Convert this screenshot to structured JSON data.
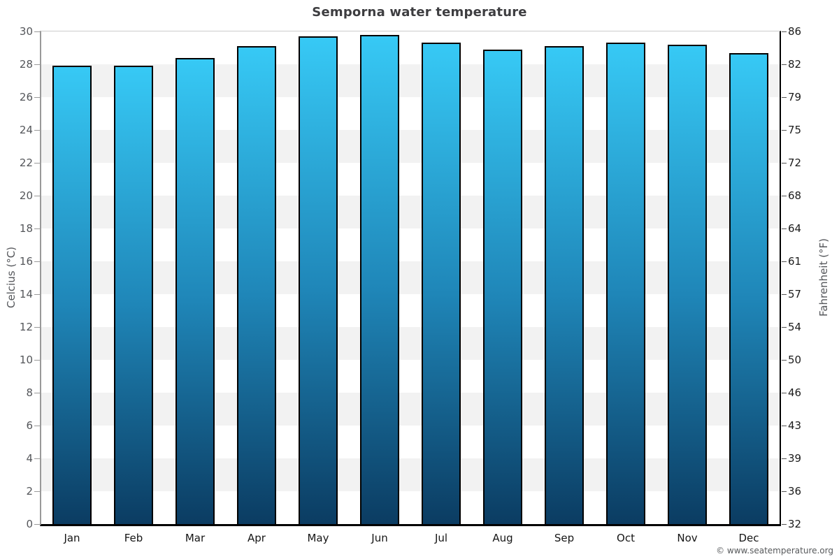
{
  "title": "Semporna water temperature",
  "footer": "© www.seatemperature.org",
  "axes": {
    "left_title": "Celcius (°C)",
    "right_title": "Fahrenheit (°F)"
  },
  "chart_data": {
    "type": "bar",
    "title": "Semporna water temperature",
    "categories": [
      "Jan",
      "Feb",
      "Mar",
      "Apr",
      "May",
      "Jun",
      "Jul",
      "Aug",
      "Sep",
      "Oct",
      "Nov",
      "Dec"
    ],
    "values": [
      27.9,
      27.9,
      28.4,
      29.1,
      29.7,
      29.8,
      29.3,
      28.9,
      29.1,
      29.3,
      29.2,
      28.7
    ],
    "xlabel": "",
    "ylabel": "Celcius (°C)",
    "ylabel_right": "Fahrenheit (°F)",
    "ylim": [
      0,
      30
    ],
    "yticks_celsius": [
      0,
      2,
      4,
      6,
      8,
      10,
      12,
      14,
      16,
      18,
      20,
      22,
      24,
      26,
      28,
      30
    ],
    "yticks_fahrenheit": [
      32,
      36,
      39,
      43,
      46,
      50,
      54,
      57,
      61,
      64,
      68,
      72,
      75,
      79,
      82,
      86
    ],
    "grid": "horizontal alternating bands every 2°C",
    "legend": false
  },
  "colors": {
    "bar_top": "#37c9f5",
    "bar_mid": "#1f86b8",
    "bar_bottom": "#0b3c62",
    "bar_border": "#010101",
    "band_light": "#ffffff",
    "band_gray": "#f2f2f2",
    "title_text": "#3d3d40",
    "left_axis_line": "#999999",
    "right_axis_line": "#000000",
    "bottom_axis_line": "#000000"
  }
}
